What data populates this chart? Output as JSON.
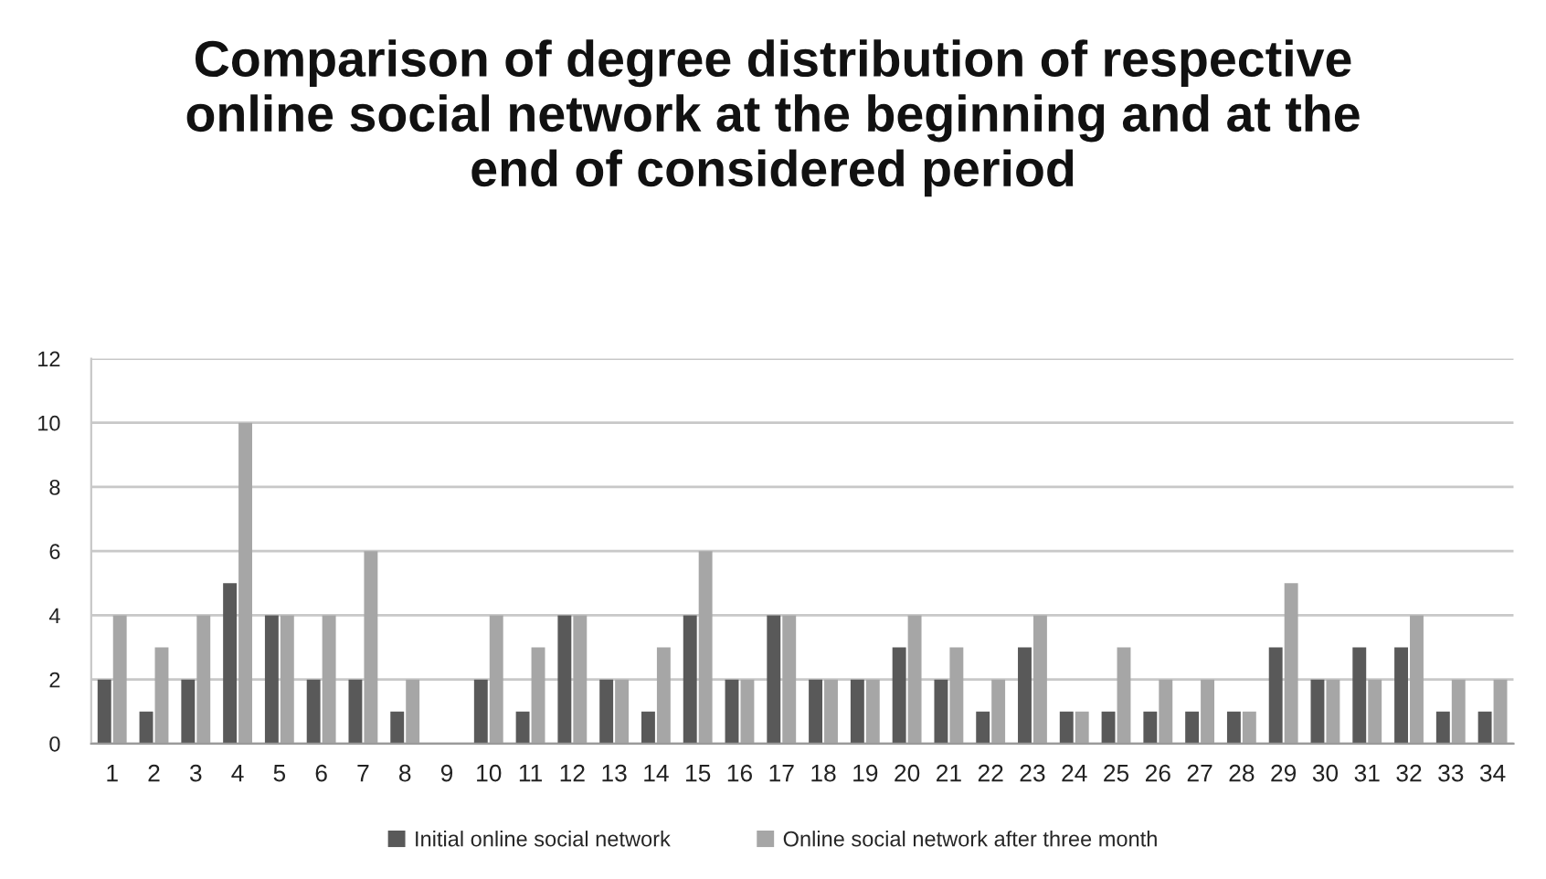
{
  "chart_data": {
    "type": "bar",
    "title": "Comparison of degree distribution of respective online social network at the beginning and at the end of considered period",
    "categories": [
      "1",
      "2",
      "3",
      "4",
      "5",
      "6",
      "7",
      "8",
      "9",
      "10",
      "11",
      "12",
      "13",
      "14",
      "15",
      "16",
      "17",
      "18",
      "19",
      "20",
      "21",
      "22",
      "23",
      "24",
      "25",
      "26",
      "27",
      "28",
      "29",
      "30",
      "31",
      "32",
      "33",
      "34"
    ],
    "series": [
      {
        "name": "Initial online social network",
        "color": "#595959",
        "values": [
          2,
          1,
          2,
          5,
          4,
          2,
          2,
          1,
          0,
          2,
          1,
          4,
          2,
          1,
          4,
          2,
          4,
          2,
          2,
          3,
          2,
          1,
          3,
          1,
          1,
          1,
          1,
          1,
          3,
          2,
          3,
          3,
          1,
          1
        ]
      },
      {
        "name": "Online social network after three month",
        "color": "#a6a6a6",
        "values": [
          4,
          3,
          4,
          10,
          4,
          4,
          6,
          2,
          0,
          4,
          3,
          4,
          2,
          3,
          6,
          2,
          4,
          2,
          2,
          4,
          3,
          2,
          4,
          1,
          3,
          2,
          2,
          1,
          5,
          2,
          2,
          4,
          2,
          2
        ]
      }
    ],
    "ylim": [
      0,
      12
    ],
    "yticks": [
      0,
      2,
      4,
      6,
      8,
      10,
      12
    ],
    "grid": "y",
    "legend": "bottom"
  }
}
